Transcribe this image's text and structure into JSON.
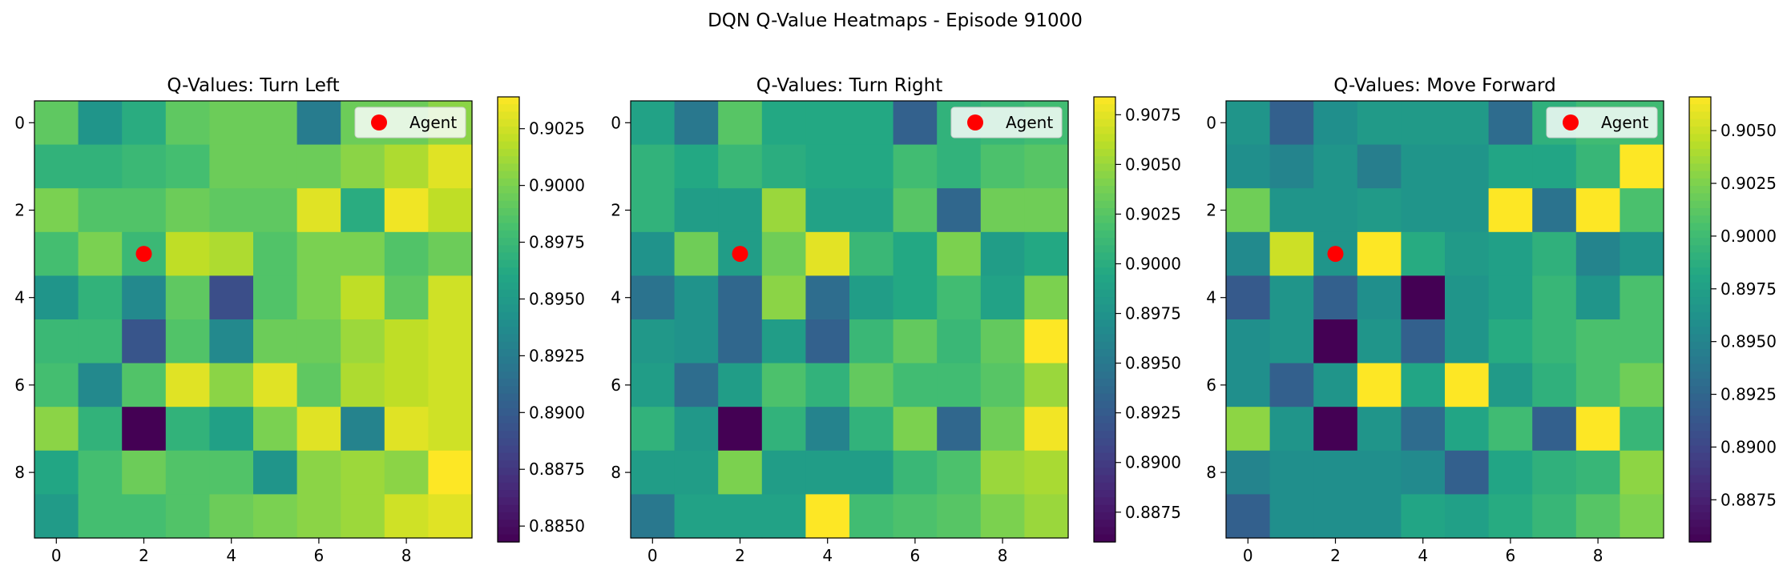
{
  "figure": {
    "suptitle": "DQN Q-Value Heatmaps - Episode 91000"
  },
  "chart_data": [
    {
      "type": "heatmap",
      "title": "Q-Values: Turn Left",
      "legend": {
        "label": "Agent",
        "placement": "top-right",
        "marker_color": "#ff0000"
      },
      "agent": {
        "x": 2,
        "y": 3
      },
      "x_ticks": [
        "0",
        "2",
        "4",
        "6",
        "8"
      ],
      "y_ticks": [
        "0",
        "2",
        "4",
        "6",
        "8"
      ],
      "colorbar": {
        "vmin": 0.8843,
        "vmax": 0.9039,
        "ticks": [
          "0.8850",
          "0.8875",
          "0.8900",
          "0.8925",
          "0.8950",
          "0.8975",
          "0.9000",
          "0.9025"
        ]
      },
      "values": [
        [
          0.899,
          0.8945,
          0.8965,
          0.899,
          0.8995,
          0.8995,
          0.8925,
          0.8995,
          0.8995,
          0.9005
        ],
        [
          0.897,
          0.897,
          0.8975,
          0.898,
          0.8995,
          0.8995,
          0.8995,
          0.9005,
          0.9015,
          0.903
        ],
        [
          0.9,
          0.8985,
          0.8985,
          0.8995,
          0.899,
          0.899,
          0.903,
          0.8965,
          0.9035,
          0.902
        ],
        [
          0.898,
          0.9,
          0.8975,
          0.902,
          0.9015,
          0.8985,
          0.9,
          0.9,
          0.8985,
          0.8995
        ],
        [
          0.8945,
          0.897,
          0.8935,
          0.899,
          0.889,
          0.8985,
          0.9,
          0.902,
          0.899,
          0.9025
        ],
        [
          0.8975,
          0.8975,
          0.8895,
          0.8985,
          0.8935,
          0.8995,
          0.8995,
          0.901,
          0.902,
          0.9025
        ],
        [
          0.898,
          0.8935,
          0.8985,
          0.903,
          0.9005,
          0.903,
          0.899,
          0.9015,
          0.902,
          0.9025
        ],
        [
          0.9005,
          0.897,
          0.8843,
          0.897,
          0.8955,
          0.9,
          0.903,
          0.893,
          0.903,
          0.9025
        ],
        [
          0.896,
          0.898,
          0.8995,
          0.8985,
          0.8985,
          0.8945,
          0.9005,
          0.901,
          0.9005,
          0.9039
        ],
        [
          0.895,
          0.898,
          0.898,
          0.8985,
          0.8995,
          0.9,
          0.9005,
          0.901,
          0.9025,
          0.903
        ]
      ]
    },
    {
      "type": "heatmap",
      "title": "Q-Values: Turn Right",
      "legend": {
        "label": "Agent",
        "placement": "top-right",
        "marker_color": "#ff0000"
      },
      "agent": {
        "x": 2,
        "y": 3
      },
      "x_ticks": [
        "0",
        "2",
        "4",
        "6",
        "8"
      ],
      "y_ticks": [
        "0",
        "2",
        "4",
        "6",
        "8"
      ],
      "colorbar": {
        "vmin": 0.886,
        "vmax": 0.9084,
        "ticks": [
          "0.8875",
          "0.8900",
          "0.8925",
          "0.8950",
          "0.8975",
          "0.9000",
          "0.9025",
          "0.9050",
          "0.9075"
        ]
      },
      "values": [
        [
          0.899,
          0.895,
          0.9025,
          0.8995,
          0.8995,
          0.8995,
          0.893,
          0.9005,
          0.901,
          0.9015
        ],
        [
          0.9005,
          0.8995,
          0.901,
          0.9,
          0.8995,
          0.8995,
          0.9015,
          0.9005,
          0.902,
          0.9025
        ],
        [
          0.9005,
          0.8985,
          0.8985,
          0.905,
          0.899,
          0.899,
          0.9025,
          0.8935,
          0.9035,
          0.9035
        ],
        [
          0.8975,
          0.9035,
          0.8985,
          0.9035,
          0.9075,
          0.901,
          0.8995,
          0.904,
          0.8985,
          0.8995
        ],
        [
          0.8945,
          0.8975,
          0.8935,
          0.9045,
          0.894,
          0.8985,
          0.8995,
          0.9015,
          0.899,
          0.904
        ],
        [
          0.898,
          0.8975,
          0.8935,
          0.8985,
          0.893,
          0.901,
          0.903,
          0.901,
          0.903,
          0.9084
        ],
        [
          0.8985,
          0.894,
          0.8985,
          0.902,
          0.9005,
          0.903,
          0.9015,
          0.9015,
          0.9025,
          0.905
        ],
        [
          0.9005,
          0.898,
          0.886,
          0.9005,
          0.896,
          0.9005,
          0.904,
          0.8935,
          0.9035,
          0.908
        ],
        [
          0.8985,
          0.8985,
          0.904,
          0.8985,
          0.8985,
          0.8985,
          0.901,
          0.902,
          0.905,
          0.9055
        ],
        [
          0.895,
          0.899,
          0.899,
          0.899,
          0.9084,
          0.9015,
          0.902,
          0.9025,
          0.904,
          0.905
        ]
      ]
    },
    {
      "type": "heatmap",
      "title": "Q-Values: Move Forward",
      "legend": {
        "label": "Agent",
        "placement": "top-right",
        "marker_color": "#ff0000"
      },
      "agent": {
        "x": 2,
        "y": 3
      },
      "x_ticks": [
        "0",
        "2",
        "4",
        "6",
        "8"
      ],
      "y_ticks": [
        "0",
        "2",
        "4",
        "6",
        "8"
      ],
      "colorbar": {
        "vmin": 0.8855,
        "vmax": 0.9066,
        "ticks": [
          "0.8875",
          "0.8900",
          "0.8925",
          "0.8950",
          "0.8975",
          "0.9000",
          "0.9025",
          "0.9050"
        ]
      },
      "values": [
        [
          0.8965,
          0.892,
          0.896,
          0.897,
          0.897,
          0.897,
          0.893,
          0.899,
          0.9,
          0.9
        ],
        [
          0.896,
          0.895,
          0.8965,
          0.8945,
          0.8965,
          0.8965,
          0.898,
          0.898,
          0.8995,
          0.9066
        ],
        [
          0.902,
          0.8965,
          0.8965,
          0.897,
          0.8965,
          0.8965,
          0.9066,
          0.8935,
          0.9066,
          0.9005
        ],
        [
          0.8955,
          0.905,
          0.8965,
          0.9066,
          0.8985,
          0.897,
          0.8975,
          0.899,
          0.895,
          0.8965
        ],
        [
          0.8915,
          0.8965,
          0.892,
          0.896,
          0.8855,
          0.8965,
          0.8975,
          0.8995,
          0.8965,
          0.9005
        ],
        [
          0.896,
          0.8965,
          0.8855,
          0.8965,
          0.892,
          0.8965,
          0.8985,
          0.8995,
          0.9005,
          0.9005
        ],
        [
          0.896,
          0.892,
          0.8965,
          0.9066,
          0.898,
          0.9066,
          0.897,
          0.899,
          0.9005,
          0.902
        ],
        [
          0.903,
          0.8965,
          0.8855,
          0.8965,
          0.893,
          0.898,
          0.9,
          0.892,
          0.9066,
          0.8995
        ],
        [
          0.895,
          0.896,
          0.896,
          0.896,
          0.8955,
          0.892,
          0.898,
          0.899,
          0.8995,
          0.903
        ],
        [
          0.892,
          0.896,
          0.896,
          0.896,
          0.898,
          0.8975,
          0.8985,
          0.8995,
          0.901,
          0.9025
        ]
      ]
    }
  ]
}
